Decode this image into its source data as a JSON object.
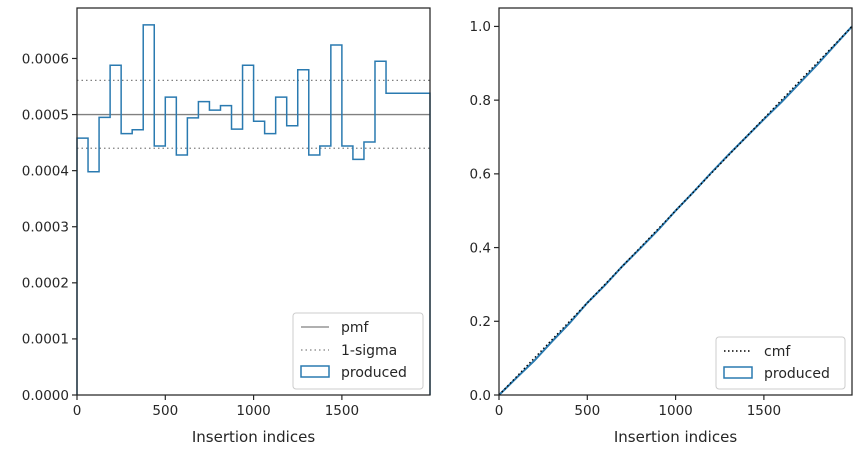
{
  "chart_data": [
    {
      "type": "histogram",
      "xlabel": "Insertion indices",
      "ylabel": "",
      "xlim": [
        0,
        1999
      ],
      "ylim": [
        0,
        0.00069
      ],
      "grid": false,
      "legend_position": "bottom-right",
      "x_ticks": [
        0,
        500,
        1000,
        1500
      ],
      "x_tick_labels": [
        "0",
        "500",
        "1000",
        "1500"
      ],
      "y_ticks": [
        0,
        0.0001,
        0.0002,
        0.0003,
        0.0004,
        0.0005,
        0.0006
      ],
      "y_tick_labels": [
        "0.0000",
        "0.0001",
        "0.0002",
        "0.0003",
        "0.0004",
        "0.0005",
        "0.0006"
      ],
      "reference_lines": [
        {
          "name": "pmf",
          "value": 0.0005,
          "style": "solid",
          "color": "#808080"
        },
        {
          "name": "1-sigma",
          "values": [
            0.00044,
            0.000561
          ],
          "style": "dotted",
          "color": "#808080"
        }
      ],
      "step_series": {
        "name": "produced",
        "color": "#2a7ab0",
        "bin_edges": [
          0,
          62.5,
          125,
          187.5,
          250,
          312.5,
          375,
          437.5,
          500,
          562.5,
          625,
          687.5,
          750,
          812.5,
          875,
          937.5,
          1000,
          1062.5,
          1125,
          1187.5,
          1250,
          1312.5,
          1375,
          1437.5,
          1500,
          1562.5,
          1625,
          1687.5,
          1750,
          1812.5,
          1875,
          1937.5,
          1999
        ],
        "values": [
          0.000458,
          0.000398,
          0.000495,
          0.000588,
          0.000466,
          0.000473,
          0.00066,
          0.000444,
          0.000531,
          0.000428,
          0.000494,
          0.000523,
          0.000508,
          0.000516,
          0.000474,
          0.000588,
          0.000488,
          0.000466,
          0.000531,
          0.00048,
          0.00058,
          0.000428,
          0.000444,
          0.000624,
          0.000444,
          0.00042,
          0.000451,
          0.000595,
          0.000538,
          0.000538,
          0.000538,
          0.000538
        ]
      }
    },
    {
      "type": "line",
      "xlabel": "Insertion indices",
      "ylabel": "",
      "xlim": [
        0,
        1999
      ],
      "ylim": [
        0,
        1.05
      ],
      "grid": false,
      "legend_position": "bottom-right",
      "x_ticks": [
        0,
        500,
        1000,
        1500
      ],
      "x_tick_labels": [
        "0",
        "500",
        "1000",
        "1500"
      ],
      "y_ticks": [
        0,
        0.2,
        0.4,
        0.6,
        0.8,
        1.0
      ],
      "y_tick_labels": [
        "0.0",
        "0.2",
        "0.4",
        "0.6",
        "0.8",
        "1.0"
      ],
      "series": [
        {
          "name": "cmf",
          "style": "dotted",
          "color": "#000000",
          "x": [
            0,
            1999
          ],
          "y": [
            0,
            1.0
          ]
        },
        {
          "name": "produced",
          "style": "solid",
          "color": "#2a7ab0",
          "x": [
            0,
            100,
            200,
            300,
            400,
            500,
            600,
            700,
            800,
            900,
            1000,
            1100,
            1200,
            1300,
            1400,
            1500,
            1600,
            1700,
            1800,
            1900,
            1999
          ],
          "y": [
            0,
            0.047,
            0.093,
            0.145,
            0.195,
            0.25,
            0.298,
            0.35,
            0.398,
            0.447,
            0.5,
            0.55,
            0.602,
            0.652,
            0.7,
            0.748,
            0.795,
            0.845,
            0.895,
            0.948,
            1.0
          ]
        }
      ]
    }
  ]
}
